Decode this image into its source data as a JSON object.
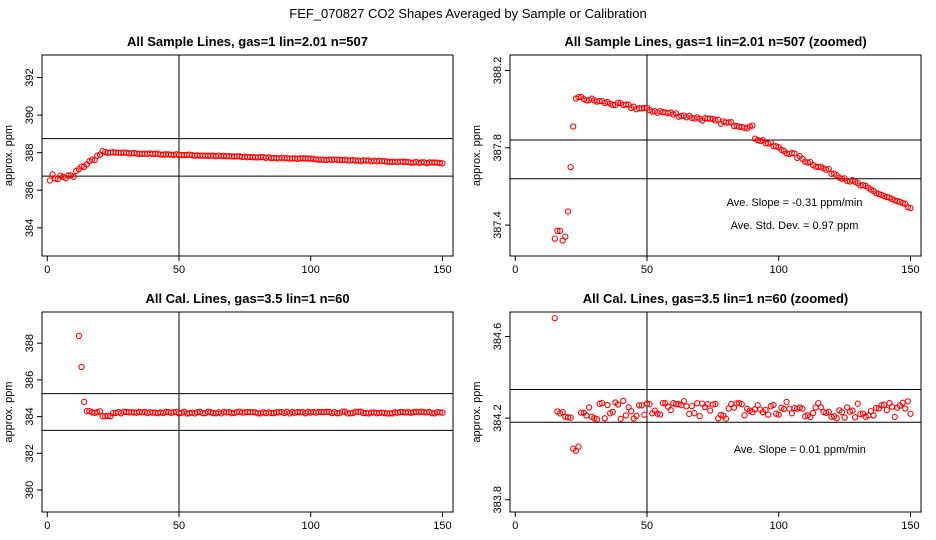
{
  "figure_title": "FEF_070827  CO2 Shapes Averaged by Sample or Calibration",
  "colors": {
    "points": "#ff0000",
    "lines": "#000000",
    "background": "#ffffff"
  },
  "chart_data": [
    {
      "type": "scatter",
      "title": "All Sample Lines, gas=1 lin=2.01 n=507",
      "xlabel": "",
      "ylabel": "approx. ppm",
      "xlim": [
        -2,
        154
      ],
      "ylim": [
        382.5,
        393.2
      ],
      "xticks": [
        0,
        50,
        100,
        150
      ],
      "yticks": [
        384,
        386,
        388,
        390,
        392
      ],
      "vline_x": 50,
      "hlines": [
        388.75,
        386.75
      ],
      "annotations": [],
      "series": [
        {
          "kind": "sample-full",
          "x_start": 1,
          "x_end": 150
        }
      ]
    },
    {
      "type": "scatter",
      "title": "All Sample Lines, gas=1 lin=2.01 n=507 (zoomed)",
      "xlabel": "",
      "ylabel": "approx. ppm",
      "xlim": [
        -2,
        154
      ],
      "ylim": [
        387.24,
        388.28
      ],
      "xticks": [
        0,
        50,
        100,
        150
      ],
      "yticks": [
        387.4,
        387.8,
        388.2
      ],
      "vline_x": 50,
      "hlines": [
        387.84,
        387.64
      ],
      "annotations": [
        {
          "text": "Ave. Slope =  -0.31  ppm/min",
          "x": 106,
          "y": 387.5
        },
        {
          "text": "Ave. Std. Dev. =  0.97  ppm",
          "x": 106,
          "y": 387.38
        }
      ],
      "series": [
        {
          "kind": "sample-zoom",
          "x_start": 15,
          "x_end": 150
        }
      ]
    },
    {
      "type": "scatter",
      "title": "All Cal. Lines, gas=3.5 lin=1 n=60",
      "xlabel": "",
      "ylabel": "approx. ppm",
      "xlim": [
        -2,
        154
      ],
      "ylim": [
        378.8,
        389.7
      ],
      "xticks": [
        0,
        50,
        100,
        150
      ],
      "yticks": [
        380,
        382,
        384,
        386,
        388
      ],
      "vline_x": 50,
      "hlines": [
        385.25,
        383.25
      ],
      "annotations": [],
      "series": [
        {
          "kind": "cal-full",
          "x_start": 12,
          "x_end": 150
        }
      ]
    },
    {
      "type": "scatter",
      "title": "All Cal. Lines, gas=3.5 lin=1 n=60 (zoomed)",
      "xlabel": "",
      "ylabel": "approx. ppm",
      "xlim": [
        -2,
        154
      ],
      "ylim": [
        383.74,
        384.72
      ],
      "xticks": [
        0,
        50,
        100,
        150
      ],
      "yticks": [
        383.8,
        384.2,
        384.6
      ],
      "vline_x": 50,
      "hlines": [
        384.34,
        384.18
      ],
      "annotations": [
        {
          "text": "Ave. Slope =  0.01  ppm/min",
          "x": 108,
          "y": 384.03
        }
      ],
      "series": [
        {
          "kind": "cal-zoom",
          "x_start": 15,
          "x_end": 150
        }
      ]
    }
  ]
}
